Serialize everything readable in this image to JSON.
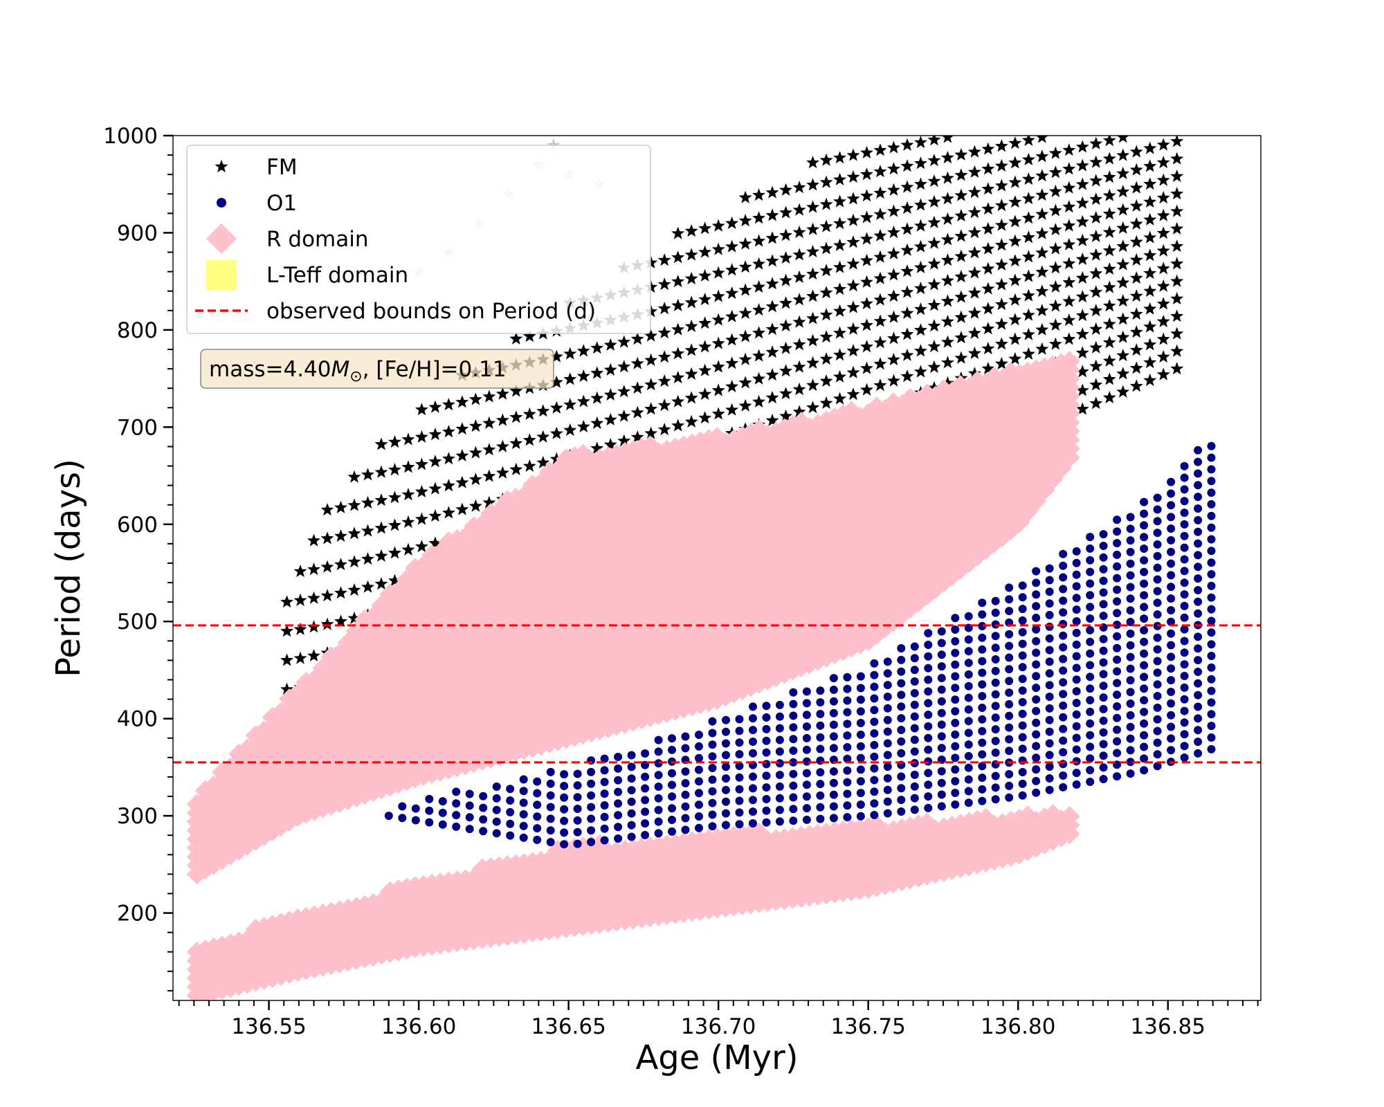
{
  "chart_data": {
    "type": "scatter",
    "title": "",
    "xlabel": "Age (Myr)",
    "ylabel": "Period (days)",
    "xlim": [
      136.518,
      136.881
    ],
    "ylim": [
      110,
      1000
    ],
    "xticks": [
      136.55,
      136.6,
      136.65,
      136.7,
      136.75,
      136.8,
      136.85
    ],
    "xtick_labels": [
      "136.55",
      "136.60",
      "136.65",
      "136.70",
      "136.75",
      "136.80",
      "136.85"
    ],
    "yticks": [
      200,
      300,
      400,
      500,
      600,
      700,
      800,
      900,
      1000
    ],
    "ytick_labels": [
      "200",
      "300",
      "400",
      "500",
      "600",
      "700",
      "800",
      "900",
      "1000"
    ],
    "legend": {
      "location": "upper-left",
      "entries": [
        {
          "label": "FM",
          "marker": "star",
          "color": "#000000"
        },
        {
          "label": "O1",
          "marker": "circle",
          "color": "#000080"
        },
        {
          "label": "R domain",
          "marker": "diamond",
          "color": "#ffc0cb"
        },
        {
          "label": "L-Teff domain",
          "marker": "square",
          "color": "#ffff80"
        },
        {
          "label": "observed bounds on Period (d)",
          "marker": "dashed-line",
          "color": "#ff0000"
        }
      ]
    },
    "annotation": {
      "prefix": "mass=4.40",
      "symbol": "M",
      "subscript": "⊙",
      "suffix": ", [Fe/H]=0.11"
    },
    "hlines": [
      {
        "y": 496,
        "style": "dashed",
        "color": "#ff0000"
      },
      {
        "y": 355,
        "style": "dashed",
        "color": "#ff0000"
      }
    ],
    "series": [
      {
        "name": "FM",
        "marker": "star",
        "color": "#000000",
        "columns": {
          "x_start": 136.556,
          "x_end": 136.855,
          "x_step": 0.0045,
          "ymin_start": 430,
          "ymin_end": 760,
          "ymax_start": 520,
          "ymax_end": 1000,
          "y_step": 30
        },
        "description_points": [
          [
            136.583,
            785
          ],
          [
            136.62,
            900
          ],
          [
            136.64,
            990
          ],
          [
            136.7,
            1000
          ],
          [
            136.78,
            1000
          ],
          [
            136.855,
            990
          ]
        ]
      },
      {
        "name": "FM (faded)",
        "marker": "star",
        "color": "#c8c8c8",
        "points": [
          [
            136.59,
            820
          ],
          [
            136.6,
            860
          ],
          [
            136.61,
            880
          ],
          [
            136.62,
            910
          ],
          [
            136.63,
            940
          ],
          [
            136.64,
            970
          ],
          [
            136.645,
            990
          ],
          [
            136.65,
            960
          ],
          [
            136.66,
            950
          ]
        ]
      },
      {
        "name": "R domain",
        "marker": "diamond",
        "color": "#ffc0cb",
        "bands": [
          {
            "x_start": 136.526,
            "x_end": 136.82,
            "lower": [
              [
                136.526,
                240
              ],
              [
                136.56,
                300
              ],
              [
                136.6,
                340
              ],
              [
                136.65,
                380
              ],
              [
                136.7,
                420
              ],
              [
                136.75,
                480
              ],
              [
                136.8,
                600
              ],
              [
                136.82,
                680
              ]
            ],
            "upper": [
              [
                136.526,
                320
              ],
              [
                136.55,
                400
              ],
              [
                136.6,
                560
              ],
              [
                136.65,
                670
              ],
              [
                136.7,
                690
              ],
              [
                136.75,
                720
              ],
              [
                136.8,
                760
              ],
              [
                136.82,
                770
              ]
            ]
          },
          {
            "x_start": 136.526,
            "x_end": 136.82,
            "lower": [
              [
                136.526,
                115
              ],
              [
                136.56,
                140
              ],
              [
                136.6,
                165
              ],
              [
                136.65,
                185
              ],
              [
                136.7,
                205
              ],
              [
                136.75,
                225
              ],
              [
                136.8,
                260
              ],
              [
                136.82,
                285
              ]
            ],
            "upper": [
              [
                136.526,
                160
              ],
              [
                136.55,
                190
              ],
              [
                136.6,
                230
              ],
              [
                136.65,
                268
              ],
              [
                136.7,
                280
              ],
              [
                136.75,
                290
              ],
              [
                136.8,
                300
              ],
              [
                136.82,
                305
              ]
            ]
          }
        ]
      },
      {
        "name": "O1",
        "marker": "circle",
        "color": "#000080",
        "columns": {
          "x_start": 136.59,
          "x_end": 136.866,
          "x_step": 0.0045
        },
        "envelope": {
          "lower": [
            [
              136.59,
              300
            ],
            [
              136.65,
              270
            ],
            [
              136.7,
              290
            ],
            [
              136.75,
              300
            ],
            [
              136.8,
              320
            ],
            [
              136.84,
              345
            ],
            [
              136.866,
              370
            ]
          ],
          "upper": [
            [
              136.59,
              310
            ],
            [
              136.65,
              350
            ],
            [
              136.7,
              400
            ],
            [
              136.75,
              455
            ],
            [
              136.8,
              540
            ],
            [
              136.84,
              620
            ],
            [
              136.866,
              695
            ]
          ]
        }
      }
    ]
  }
}
